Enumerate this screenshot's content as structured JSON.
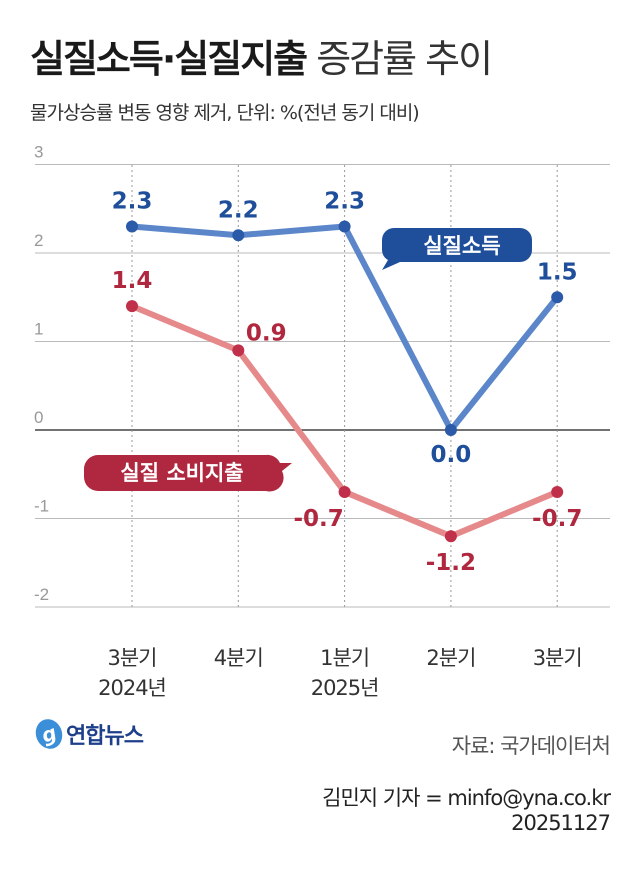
{
  "title": {
    "bold": "실질소득·실질지출",
    "light": "증감률 추이"
  },
  "subtitle": "물가상승률 변동 영향 제거, 단위: %(전년 동기 대비)",
  "source": "자료: 국가데이터처",
  "credit": "김민지 기자 = minfo@yna.co.kr",
  "date": "20251127",
  "logo": "연합뉴스",
  "chart_data": {
    "type": "line",
    "categories": [
      "3분기\n2024년",
      "4분기",
      "1분기\n2025년",
      "2분기",
      "3분기"
    ],
    "ylim": [
      -2,
      3
    ],
    "yticks": [
      3,
      2,
      1,
      0,
      -1,
      -2
    ],
    "grid": true,
    "series": [
      {
        "name": "실질소득",
        "values": [
          2.3,
          2.2,
          2.3,
          0.0,
          1.5
        ],
        "labels": [
          "2.3",
          "2.2",
          "2.3",
          "0.0",
          "1.5"
        ],
        "color": "#5b86c9",
        "dot": "#2a5aa8",
        "label_color": "#1f4e9a"
      },
      {
        "name": "실질 소비지출",
        "values": [
          1.4,
          0.9,
          -0.7,
          -1.2,
          -0.7
        ],
        "labels": [
          "1.4",
          "0.9",
          "-0.7",
          "-1.2",
          "-0.7"
        ],
        "color": "#e5898b",
        "dot": "#c0304a",
        "label_color": "#b0283f"
      }
    ]
  }
}
